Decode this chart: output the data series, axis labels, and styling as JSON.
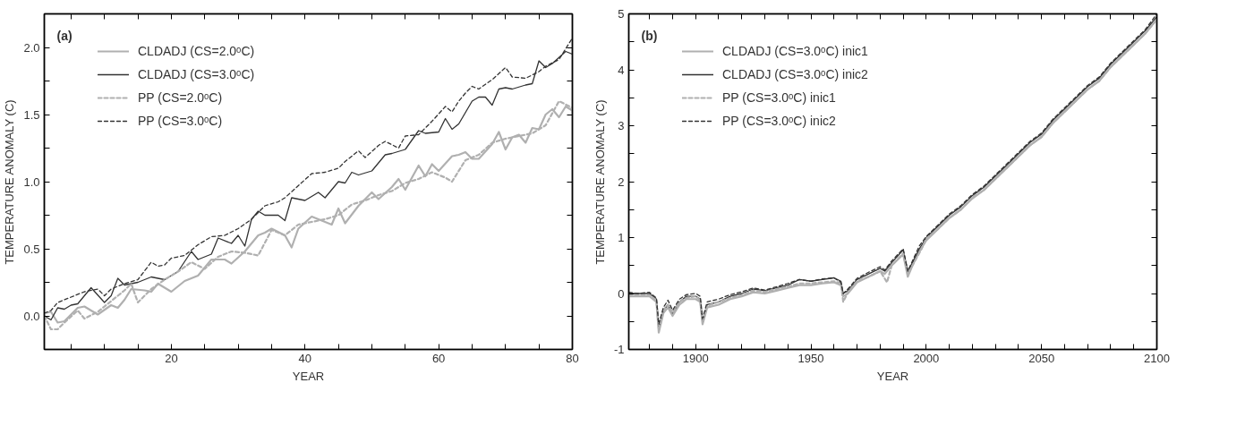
{
  "chart_data": [
    {
      "type": "line",
      "xlabel": "YEAR",
      "ylabel": "TEMPERATURE ANOMALY (C)",
      "annotations": [
        "(a)"
      ],
      "legend": "top left",
      "grid": false,
      "xlim": [
        1,
        80
      ],
      "xticks": [
        {
          "value": 5,
          "label": null
        },
        {
          "value": 10,
          "label": null
        },
        {
          "value": 15,
          "label": null
        },
        20,
        {
          "value": 25,
          "label": null
        },
        {
          "value": 30,
          "label": null
        },
        {
          "value": 35,
          "label": null
        },
        40,
        {
          "value": 45,
          "label": null
        },
        {
          "value": 50,
          "label": null
        },
        {
          "value": 55,
          "label": null
        },
        60,
        {
          "value": 65,
          "label": null
        },
        {
          "value": 70,
          "label": null
        },
        {
          "value": 75,
          "label": null
        },
        80
      ],
      "ylim": [
        -0.25,
        2.25
      ],
      "yticks": [
        {
          "value": -0.25,
          "label": null
        },
        {
          "value": 0,
          "label": "0.0"
        },
        {
          "value": 0.25,
          "label": null
        },
        0.5,
        {
          "value": 0.75,
          "label": null
        },
        {
          "value": 1,
          "label": "1.0"
        },
        {
          "value": 1.25,
          "label": null
        },
        1.5,
        {
          "value": 1.75,
          "label": null
        },
        {
          "value": 2,
          "label": "2.0"
        },
        {
          "value": 2.25,
          "label": null
        }
      ],
      "series": [
        {
          "name": "CLDADJ (CS=2.0ᵒC)",
          "color": "#b0b0b0",
          "line_style": "solid",
          "x": [
            1,
            2,
            3,
            4,
            6,
            7,
            9,
            11,
            12,
            13,
            14,
            16,
            17,
            18,
            20,
            22,
            24,
            26,
            28,
            29,
            31,
            33,
            34,
            35,
            37,
            38,
            39,
            41,
            42,
            44,
            45,
            46,
            48,
            50,
            51,
            53,
            54,
            55,
            57,
            58,
            59,
            60,
            62,
            63,
            64,
            65,
            66,
            68,
            69,
            70,
            71,
            72,
            73,
            74,
            75,
            76,
            77,
            78,
            79,
            80
          ],
          "values": [
            0.02,
            0.03,
            -0.05,
            -0.04,
            0.06,
            0.07,
            0.01,
            0.08,
            0.06,
            0.12,
            0.2,
            0.19,
            0.18,
            0.24,
            0.18,
            0.26,
            0.3,
            0.42,
            0.42,
            0.39,
            0.48,
            0.6,
            0.62,
            0.65,
            0.6,
            0.51,
            0.65,
            0.74,
            0.72,
            0.68,
            0.8,
            0.69,
            0.82,
            0.92,
            0.87,
            0.96,
            1.02,
            0.94,
            1.12,
            1.04,
            1.13,
            1.08,
            1.19,
            1.2,
            1.22,
            1.17,
            1.17,
            1.28,
            1.37,
            1.24,
            1.33,
            1.35,
            1.29,
            1.4,
            1.39,
            1.5,
            1.54,
            1.48,
            1.56,
            1.53
          ]
        },
        {
          "name": "CLDADJ (CS=3.0ᵒC)",
          "color": "#333333",
          "line_style": "solid",
          "x": [
            1,
            2,
            3,
            4,
            5,
            6,
            8,
            10,
            11,
            12,
            13,
            15,
            17,
            19,
            21,
            23,
            24,
            26,
            27,
            29,
            30,
            31,
            32,
            33,
            34,
            36,
            37,
            38,
            40,
            42,
            43,
            45,
            46,
            47,
            48,
            50,
            52,
            53,
            55,
            57,
            58,
            60,
            61,
            62,
            63,
            65,
            66,
            67,
            68,
            69,
            70,
            71,
            73,
            74,
            75,
            76,
            77,
            79,
            80
          ],
          "values": [
            0.0,
            -0.03,
            0.06,
            0.05,
            0.08,
            0.09,
            0.21,
            0.1,
            0.15,
            0.28,
            0.23,
            0.25,
            0.29,
            0.27,
            0.33,
            0.48,
            0.42,
            0.46,
            0.58,
            0.54,
            0.6,
            0.52,
            0.72,
            0.78,
            0.75,
            0.75,
            0.71,
            0.88,
            0.86,
            0.92,
            0.88,
            1.0,
            0.99,
            1.07,
            1.05,
            1.08,
            1.2,
            1.21,
            1.24,
            1.38,
            1.36,
            1.37,
            1.47,
            1.39,
            1.43,
            1.6,
            1.63,
            1.63,
            1.57,
            1.69,
            1.7,
            1.69,
            1.72,
            1.73,
            1.9,
            1.85,
            1.88,
            1.97,
            1.95
          ]
        },
        {
          "name": "PP (CS=2.0ᵒC)",
          "color": "#b0b0b0",
          "line_style": "dashed",
          "x": [
            1,
            2,
            3,
            4,
            6,
            7,
            9,
            10,
            12,
            13,
            14,
            15,
            16,
            17,
            19,
            21,
            23,
            25,
            27,
            29,
            31,
            33,
            35,
            37,
            39,
            41,
            43,
            45,
            47,
            49,
            51,
            53,
            55,
            57,
            59,
            61,
            62,
            64,
            66,
            68,
            70,
            72,
            74,
            76,
            78,
            80
          ],
          "values": [
            0.0,
            -0.1,
            -0.1,
            -0.05,
            0.04,
            -0.02,
            0.03,
            0.07,
            0.15,
            0.19,
            0.24,
            0.1,
            0.15,
            0.2,
            0.27,
            0.33,
            0.4,
            0.35,
            0.44,
            0.48,
            0.47,
            0.45,
            0.64,
            0.6,
            0.68,
            0.7,
            0.72,
            0.75,
            0.83,
            0.86,
            0.9,
            0.93,
            0.99,
            1.02,
            1.07,
            1.03,
            1.0,
            1.16,
            1.2,
            1.29,
            1.32,
            1.34,
            1.36,
            1.42,
            1.6,
            1.55
          ]
        },
        {
          "name": "PP (CS=3.0ᵒC)",
          "color": "#333333",
          "line_style": "dashed",
          "x": [
            1,
            2,
            3,
            5,
            7,
            9,
            10,
            11,
            13,
            15,
            17,
            18,
            19,
            20,
            22,
            24,
            26,
            28,
            30,
            32,
            34,
            36,
            37,
            39,
            41,
            43,
            45,
            46,
            48,
            49,
            51,
            52,
            54,
            55,
            57,
            59,
            61,
            62,
            63,
            64,
            65,
            66,
            68,
            70,
            71,
            73,
            75,
            76,
            78,
            80
          ],
          "values": [
            0.02,
            0.04,
            0.1,
            0.14,
            0.18,
            0.2,
            0.15,
            0.2,
            0.24,
            0.27,
            0.4,
            0.37,
            0.38,
            0.43,
            0.45,
            0.53,
            0.59,
            0.6,
            0.65,
            0.72,
            0.82,
            0.85,
            0.88,
            0.97,
            1.06,
            1.07,
            1.1,
            1.15,
            1.23,
            1.18,
            1.27,
            1.3,
            1.25,
            1.34,
            1.35,
            1.45,
            1.56,
            1.52,
            1.6,
            1.66,
            1.71,
            1.69,
            1.76,
            1.85,
            1.78,
            1.77,
            1.82,
            1.86,
            1.91,
            2.07
          ]
        }
      ]
    },
    {
      "type": "line",
      "xlabel": "YEAR",
      "ylabel": "TEMPERATURE ANOMALY (C)",
      "annotations": [
        "(b)"
      ],
      "legend": "top left",
      "grid": false,
      "xlim": [
        1871,
        2100
      ],
      "xticks": [
        {
          "value": 1880,
          "label": null
        },
        {
          "value": 1890,
          "label": null
        },
        1900,
        {
          "value": 1910,
          "label": null
        },
        {
          "value": 1920,
          "label": null
        },
        {
          "value": 1930,
          "label": null
        },
        {
          "value": 1940,
          "label": null
        },
        1950,
        {
          "value": 1960,
          "label": null
        },
        {
          "value": 1970,
          "label": null
        },
        {
          "value": 1980,
          "label": null
        },
        {
          "value": 1990,
          "label": null
        },
        2000,
        {
          "value": 2010,
          "label": null
        },
        {
          "value": 2020,
          "label": null
        },
        {
          "value": 2030,
          "label": null
        },
        {
          "value": 2040,
          "label": null
        },
        2050,
        {
          "value": 2060,
          "label": null
        },
        {
          "value": 2070,
          "label": null
        },
        {
          "value": 2080,
          "label": null
        },
        {
          "value": 2090,
          "label": null
        },
        2100
      ],
      "ylim": [
        -1,
        5
      ],
      "yticks": [
        -1,
        {
          "value": -0.5,
          "label": null
        },
        0,
        {
          "value": 0.5,
          "label": null
        },
        1,
        {
          "value": 1.5,
          "label": null
        },
        2,
        {
          "value": 2.5,
          "label": null
        },
        3,
        {
          "value": 3.5,
          "label": null
        },
        4,
        {
          "value": 4.5,
          "label": null
        },
        5
      ],
      "series": [
        {
          "name": "CLDADJ (CS=3.0ᵒC) inic1",
          "color": "#b0b0b0",
          "line_style": "solid",
          "x": [
            1871,
            1875,
            1880,
            1883,
            1884,
            1886,
            1888,
            1890,
            1893,
            1896,
            1900,
            1902,
            1903,
            1905,
            1910,
            1915,
            1920,
            1925,
            1930,
            1935,
            1940,
            1945,
            1950,
            1955,
            1960,
            1963,
            1964,
            1966,
            1970,
            1975,
            1980,
            1982,
            1985,
            1990,
            1992,
            1994,
            1997,
            2000,
            2005,
            2010,
            2015,
            2020,
            2025,
            2030,
            2035,
            2040,
            2045,
            2050,
            2055,
            2060,
            2065,
            2070,
            2075,
            2080,
            2085,
            2090,
            2095,
            2100
          ],
          "values": [
            -0.05,
            -0.05,
            -0.05,
            -0.15,
            -0.7,
            -0.35,
            -0.25,
            -0.4,
            -0.2,
            -0.1,
            -0.1,
            -0.15,
            -0.55,
            -0.25,
            -0.2,
            -0.1,
            -0.05,
            0.02,
            0.0,
            0.05,
            0.1,
            0.15,
            0.15,
            0.18,
            0.2,
            0.15,
            -0.05,
            0.0,
            0.2,
            0.3,
            0.4,
            0.35,
            0.5,
            0.7,
            0.3,
            0.5,
            0.75,
            0.95,
            1.15,
            1.35,
            1.5,
            1.7,
            1.85,
            2.05,
            2.25,
            2.45,
            2.65,
            2.8,
            3.05,
            3.25,
            3.45,
            3.65,
            3.8,
            4.05,
            4.25,
            4.45,
            4.65,
            4.9
          ]
        },
        {
          "name": "CLDADJ (CS=3.0ᵒC) inic2",
          "color": "#333333",
          "line_style": "solid",
          "x": [
            1871,
            1875,
            1880,
            1883,
            1884,
            1886,
            1888,
            1890,
            1893,
            1896,
            1900,
            1902,
            1903,
            1905,
            1910,
            1915,
            1920,
            1925,
            1930,
            1935,
            1940,
            1945,
            1950,
            1955,
            1960,
            1963,
            1964,
            1966,
            1970,
            1975,
            1980,
            1982,
            1985,
            1990,
            1992,
            1994,
            1997,
            2000,
            2005,
            2010,
            2015,
            2020,
            2025,
            2030,
            2035,
            2040,
            2045,
            2050,
            2055,
            2060,
            2065,
            2070,
            2075,
            2080,
            2085,
            2090,
            2095,
            2100
          ],
          "values": [
            0.0,
            0.0,
            0.0,
            -0.1,
            -0.6,
            -0.3,
            -0.2,
            -0.35,
            -0.15,
            -0.05,
            -0.05,
            -0.1,
            -0.5,
            -0.2,
            -0.15,
            -0.05,
            0.0,
            0.08,
            0.05,
            0.1,
            0.15,
            0.25,
            0.22,
            0.25,
            0.28,
            0.22,
            0.0,
            0.05,
            0.25,
            0.35,
            0.45,
            0.4,
            0.55,
            0.78,
            0.4,
            0.55,
            0.8,
            1.0,
            1.2,
            1.4,
            1.55,
            1.75,
            1.9,
            2.1,
            2.3,
            2.5,
            2.7,
            2.85,
            3.1,
            3.3,
            3.5,
            3.7,
            3.85,
            4.1,
            4.3,
            4.5,
            4.7,
            4.95
          ]
        },
        {
          "name": "PP (CS=3.0ᵒC) inic1",
          "color": "#b0b0b0",
          "line_style": "dashed",
          "x": [
            1871,
            1875,
            1880,
            1883,
            1884,
            1886,
            1888,
            1890,
            1893,
            1896,
            1900,
            1902,
            1903,
            1905,
            1910,
            1915,
            1920,
            1925,
            1930,
            1935,
            1940,
            1945,
            1950,
            1955,
            1960,
            1963,
            1964,
            1966,
            1970,
            1975,
            1980,
            1983,
            1985,
            1990,
            1992,
            1994,
            1998,
            2000,
            2005,
            2010,
            2015,
            2020,
            2025,
            2030,
            2035,
            2040,
            2045,
            2050,
            2055,
            2060,
            2065,
            2070,
            2075,
            2080,
            2085,
            2090,
            2095,
            2100
          ],
          "values": [
            -0.03,
            -0.03,
            -0.03,
            -0.12,
            -0.62,
            -0.3,
            -0.2,
            -0.35,
            -0.15,
            -0.08,
            -0.05,
            -0.12,
            -0.5,
            -0.22,
            -0.15,
            -0.08,
            -0.03,
            0.05,
            0.03,
            0.08,
            0.12,
            0.18,
            0.18,
            0.2,
            0.22,
            0.18,
            -0.15,
            0.02,
            0.22,
            0.3,
            0.4,
            0.2,
            0.5,
            0.72,
            0.35,
            0.5,
            0.8,
            0.98,
            1.15,
            1.35,
            1.5,
            1.72,
            1.85,
            2.05,
            2.25,
            2.45,
            2.65,
            2.8,
            3.05,
            3.25,
            3.45,
            3.65,
            3.8,
            4.05,
            4.25,
            4.45,
            4.65,
            4.9
          ]
        },
        {
          "name": "PP (CS=3.0ᵒC) inic2",
          "color": "#333333",
          "line_style": "dashed",
          "x": [
            1871,
            1875,
            1880,
            1883,
            1884,
            1886,
            1888,
            1890,
            1893,
            1896,
            1900,
            1902,
            1903,
            1905,
            1910,
            1915,
            1920,
            1925,
            1930,
            1935,
            1940,
            1945,
            1950,
            1955,
            1960,
            1963,
            1964,
            1966,
            1970,
            1975,
            1980,
            1982,
            1985,
            1990,
            1992,
            1994,
            1997,
            2000,
            2005,
            2010,
            2015,
            2020,
            2025,
            2030,
            2035,
            2040,
            2045,
            2050,
            2055,
            2060,
            2065,
            2070,
            2075,
            2080,
            2085,
            2090,
            2095,
            2100
          ],
          "values": [
            0.02,
            0.0,
            0.02,
            -0.08,
            -0.55,
            -0.25,
            -0.12,
            -0.3,
            -0.1,
            -0.02,
            0.0,
            -0.05,
            -0.45,
            -0.15,
            -0.1,
            -0.02,
            0.03,
            0.1,
            0.06,
            0.12,
            0.18,
            0.25,
            0.22,
            0.26,
            0.28,
            0.2,
            0.0,
            0.08,
            0.27,
            0.38,
            0.48,
            0.42,
            0.58,
            0.8,
            0.4,
            0.58,
            0.85,
            1.02,
            1.22,
            1.42,
            1.57,
            1.77,
            1.92,
            2.12,
            2.32,
            2.52,
            2.72,
            2.87,
            3.12,
            3.32,
            3.52,
            3.72,
            3.87,
            4.12,
            4.32,
            4.52,
            4.72,
            5.0
          ]
        }
      ]
    }
  ]
}
